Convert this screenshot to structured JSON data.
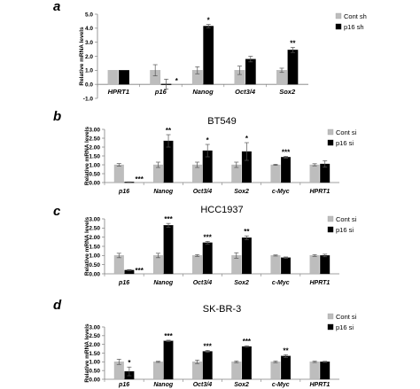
{
  "colors": {
    "control": "#bdbdbd",
    "treatment": "#000000",
    "axis": "#7f7f7f",
    "text": "#000000"
  },
  "chart_data": [
    {
      "type": "bar",
      "panel_label": "a",
      "title": "",
      "ylabel": "Relative mRNA levels",
      "ylim": [
        -1.0,
        5.0
      ],
      "ytick_values": [
        -1,
        0,
        1,
        2,
        3,
        4,
        5
      ],
      "ytick_labels": [
        "-1.0",
        "0.0",
        "1.0",
        "2.0",
        "3.0",
        "4.0",
        "5.0"
      ],
      "categories": [
        "HPRT1",
        "p16",
        "Nanog",
        "Oct3/4",
        "Sox2"
      ],
      "series": [
        {
          "name": "Cont sh",
          "values": [
            1.0,
            1.0,
            1.0,
            1.0,
            1.0
          ],
          "errors": [
            0.0,
            0.4,
            0.25,
            0.3,
            0.15
          ],
          "stars": [
            "",
            "",
            "",
            "",
            ""
          ]
        },
        {
          "name": "p16 sh",
          "values": [
            1.0,
            0.02,
            4.15,
            1.8,
            2.45
          ],
          "errors": [
            0.0,
            0.35,
            0.12,
            0.2,
            0.18
          ],
          "stars": [
            "",
            "*",
            "*",
            "",
            "**"
          ]
        }
      ],
      "legend_position": "top-right"
    },
    {
      "type": "bar",
      "panel_label": "b",
      "title": "BT549",
      "ylabel": "Relative mRNA levels",
      "ylim": [
        0,
        3.0
      ],
      "ytick_values": [
        0,
        0.5,
        1,
        1.5,
        2,
        2.5,
        3
      ],
      "ytick_labels": [
        "0.00",
        "0.50",
        "1.00",
        "1.50",
        "2.00",
        "2.50",
        "3.00"
      ],
      "categories": [
        "p16",
        "Nanog",
        "Oct3/4",
        "Sox2",
        "c-Myc",
        "HPRT1"
      ],
      "series": [
        {
          "name": "Cont si",
          "values": [
            1.0,
            1.0,
            1.0,
            1.0,
            1.0,
            1.0
          ],
          "errors": [
            0.07,
            0.15,
            0.15,
            0.15,
            0.03,
            0.06
          ],
          "stars": [
            "",
            "",
            "",
            "",
            "",
            ""
          ]
        },
        {
          "name": "p16 si",
          "values": [
            0.03,
            2.35,
            1.8,
            1.75,
            1.43,
            1.05
          ],
          "errors": [
            0.01,
            0.35,
            0.35,
            0.5,
            0.05,
            0.18
          ],
          "stars": [
            "***",
            "**",
            "*",
            "*",
            "***",
            ""
          ]
        }
      ],
      "legend_position": "top-right"
    },
    {
      "type": "bar",
      "panel_label": "c",
      "title": "HCC1937",
      "ylabel": "Relative mRNA levels",
      "ylim": [
        0,
        3.0
      ],
      "ytick_values": [
        0,
        0.5,
        1,
        1.5,
        2,
        2.5,
        3
      ],
      "ytick_labels": [
        "0.00",
        "0.50",
        "1.00",
        "1.50",
        "2.00",
        "2.50",
        "3.00"
      ],
      "categories": [
        "p16",
        "Nanog",
        "Oct3/4",
        "Sox2",
        "c-Myc",
        "HPRT1"
      ],
      "series": [
        {
          "name": "Cont si",
          "values": [
            1.0,
            1.0,
            1.0,
            1.0,
            1.0,
            1.0
          ],
          "errors": [
            0.12,
            0.12,
            0.05,
            0.15,
            0.03,
            0.05
          ],
          "stars": [
            "",
            "",
            "",
            "",
            "",
            ""
          ]
        },
        {
          "name": "p16 si",
          "values": [
            0.2,
            2.65,
            1.7,
            1.97,
            0.88,
            1.0
          ],
          "errors": [
            0.03,
            0.1,
            0.07,
            0.1,
            0.04,
            0.07
          ],
          "stars": [
            "***",
            "***",
            "***",
            "**",
            "",
            ""
          ]
        }
      ],
      "legend_position": "top-right"
    },
    {
      "type": "bar",
      "panel_label": "d",
      "title": "SK-BR-3",
      "ylabel": "Relative mRNA levels",
      "ylim": [
        0,
        3.0
      ],
      "ytick_values": [
        0,
        0.5,
        1,
        1.5,
        2,
        2.5,
        3
      ],
      "ytick_labels": [
        "0.00",
        "0.50",
        "1.00",
        "1.50",
        "2.00",
        "2.50",
        "3.00"
      ],
      "categories": [
        "p16",
        "Nanog",
        "Oct3/4",
        "Sox2",
        "c-Myc",
        "HPRT1"
      ],
      "series": [
        {
          "name": "Cont si",
          "values": [
            1.0,
            1.0,
            1.0,
            1.0,
            1.0,
            1.0
          ],
          "errors": [
            0.15,
            0.03,
            0.1,
            0.05,
            0.05,
            0.04
          ],
          "stars": [
            "",
            "",
            "",
            "",
            "",
            ""
          ]
        },
        {
          "name": "p16 si",
          "values": [
            0.45,
            2.2,
            1.6,
            1.88,
            1.33,
            1.0
          ],
          "errors": [
            0.25,
            0.04,
            0.06,
            0.04,
            0.08,
            0.03
          ],
          "stars": [
            "*",
            "***",
            "***",
            "***",
            "**",
            ""
          ]
        }
      ],
      "legend_position": "top-right"
    }
  ]
}
